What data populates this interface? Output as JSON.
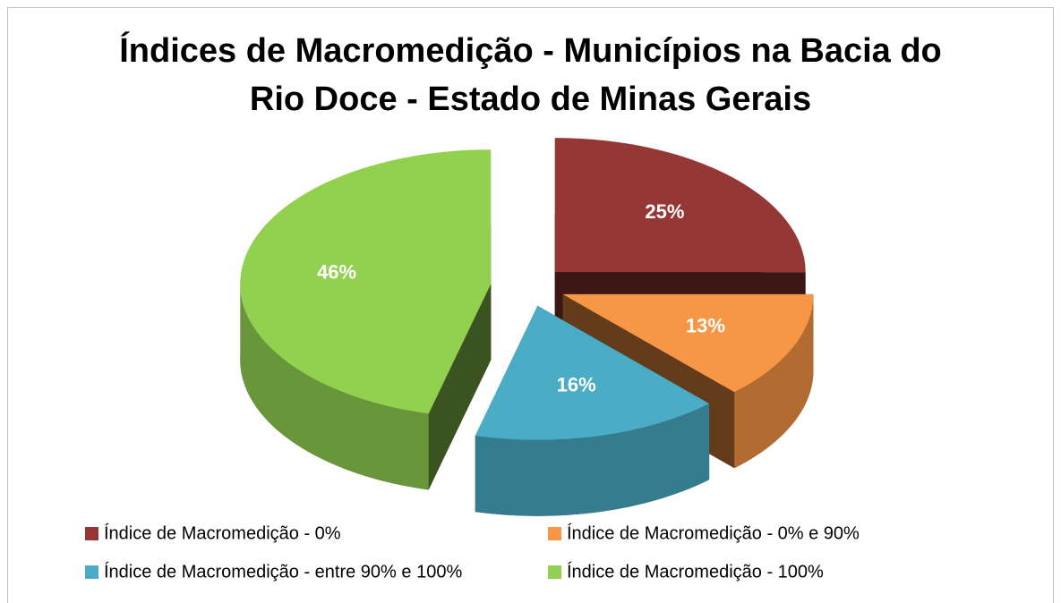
{
  "chart_data": {
    "type": "pie",
    "title": "Índices de Macromedição - Municípios na Bacia do Rio Doce - Estado de Minas Gerais",
    "categories": [
      "Índice de Macromedição - 0%",
      "Índice de Macromedição - 0% e 90%",
      "Índice de Macromedição - entre 90% e 100%",
      "Índice de Macromedição - 100%"
    ],
    "values": [
      25,
      13,
      16,
      46
    ],
    "value_labels": [
      "25%",
      "13%",
      "16%",
      "46%"
    ],
    "colors": [
      "#953735",
      "#f79646",
      "#4bacc6",
      "#92d050"
    ],
    "legend": "bottom",
    "exploded": true,
    "three_d": true
  }
}
